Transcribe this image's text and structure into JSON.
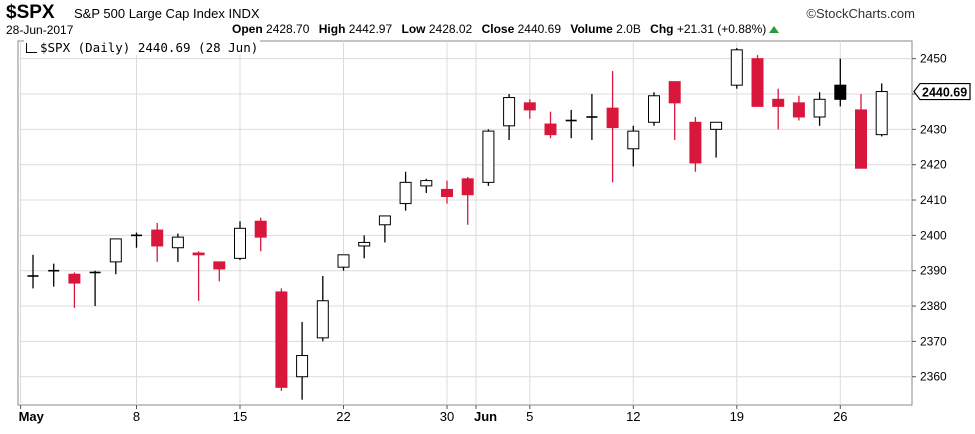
{
  "header": {
    "symbol": "$SPX",
    "name": "S&P 500 Large Cap Index",
    "exchange": "INDX",
    "brand": "StockCharts.com",
    "date": "28-Jun-2017",
    "open_label": "Open",
    "open": "2428.70",
    "high_label": "High",
    "high": "2442.97",
    "low_label": "Low",
    "low": "2428.02",
    "close_label": "Close",
    "close": "2440.69",
    "volume_label": "Volume",
    "volume": "2.0B",
    "chg_label": "Chg",
    "chg": "+21.31 (+0.88%)"
  },
  "series_label": "$SPX (Daily) 2440.69 (28 Jun)",
  "colors": {
    "up": "#ffffff",
    "down": "#d9173d",
    "outline": "#000000",
    "grid": "#dcdcdc",
    "last": "#000000"
  },
  "chart_data": {
    "type": "candlestick",
    "ylim": [
      2352,
      2455
    ],
    "y_ticks": [
      2360,
      2370,
      2380,
      2390,
      2400,
      2410,
      2420,
      2430,
      2440,
      2450
    ],
    "last_value": "2440.69",
    "x_labels": [
      {
        "label": "May",
        "bold": true,
        "index": -0.6
      },
      {
        "label": "8",
        "index": 5
      },
      {
        "label": "15",
        "index": 10
      },
      {
        "label": "22",
        "index": 15
      },
      {
        "label": "30",
        "index": 20
      },
      {
        "label": "Jun",
        "bold": true,
        "index": 21.4
      },
      {
        "label": "5",
        "index": 24
      },
      {
        "label": "12",
        "index": 29
      },
      {
        "label": "26",
        "index": 39
      },
      {
        "label": "19",
        "index": 34
      }
    ],
    "candles": [
      {
        "o": 2388.5,
        "h": 2394.5,
        "l": 2385.0,
        "c": 2388.5,
        "color": "doji"
      },
      {
        "o": 2390.0,
        "h": 2392.0,
        "l": 2385.5,
        "c": 2390.0,
        "color": "doji"
      },
      {
        "o": 2389.0,
        "h": 2389.5,
        "l": 2379.5,
        "c": 2386.5,
        "color": "red"
      },
      {
        "o": 2389.5,
        "h": 2390.0,
        "l": 2380.0,
        "c": 2389.5,
        "color": "doji"
      },
      {
        "o": 2392.5,
        "h": 2399.0,
        "l": 2389.0,
        "c": 2399.0,
        "color": "up"
      },
      {
        "o": 2400.0,
        "h": 2400.8,
        "l": 2396.5,
        "c": 2400.0,
        "color": "doji"
      },
      {
        "o": 2401.5,
        "h": 2403.5,
        "l": 2392.5,
        "c": 2397.0,
        "color": "red"
      },
      {
        "o": 2396.5,
        "h": 2400.5,
        "l": 2392.5,
        "c": 2399.5,
        "color": "up"
      },
      {
        "o": 2395.0,
        "h": 2395.5,
        "l": 2381.5,
        "c": 2394.5,
        "color": "red"
      },
      {
        "o": 2392.5,
        "h": 2392.5,
        "l": 2387.0,
        "c": 2390.5,
        "color": "red"
      },
      {
        "o": 2393.5,
        "h": 2404.0,
        "l": 2393.0,
        "c": 2402.0,
        "color": "up"
      },
      {
        "o": 2404.0,
        "h": 2405.0,
        "l": 2395.5,
        "c": 2399.5,
        "color": "red"
      },
      {
        "o": 2384.0,
        "h": 2385.0,
        "l": 2356.0,
        "c": 2357.0,
        "color": "red"
      },
      {
        "o": 2360.0,
        "h": 2375.5,
        "l": 2353.5,
        "c": 2366.0,
        "color": "up"
      },
      {
        "o": 2371.0,
        "h": 2388.5,
        "l": 2370.0,
        "c": 2381.5,
        "color": "up"
      },
      {
        "o": 2391.0,
        "h": 2394.5,
        "l": 2390.0,
        "c": 2394.5,
        "color": "up"
      },
      {
        "o": 2397.0,
        "h": 2400.0,
        "l": 2393.5,
        "c": 2398.0,
        "color": "up"
      },
      {
        "o": 2403.0,
        "h": 2405.5,
        "l": 2398.0,
        "c": 2405.5,
        "color": "up"
      },
      {
        "o": 2409.0,
        "h": 2418.0,
        "l": 2407.0,
        "c": 2415.0,
        "color": "up"
      },
      {
        "o": 2414.0,
        "h": 2416.0,
        "l": 2412.0,
        "c": 2415.5,
        "color": "up"
      },
      {
        "o": 2413.0,
        "h": 2415.5,
        "l": 2409.0,
        "c": 2411.0,
        "color": "red"
      },
      {
        "o": 2416.0,
        "h": 2416.5,
        "l": 2403.0,
        "c": 2411.5,
        "color": "red"
      },
      {
        "o": 2415.0,
        "h": 2430.0,
        "l": 2414.0,
        "c": 2429.5,
        "color": "up"
      },
      {
        "o": 2431.0,
        "h": 2440.0,
        "l": 2427.0,
        "c": 2439.0,
        "color": "up"
      },
      {
        "o": 2437.5,
        "h": 2438.5,
        "l": 2433.0,
        "c": 2435.5,
        "color": "red"
      },
      {
        "o": 2431.5,
        "h": 2435.0,
        "l": 2427.5,
        "c": 2428.5,
        "color": "red"
      },
      {
        "o": 2432.5,
        "h": 2435.5,
        "l": 2427.5,
        "c": 2432.5,
        "color": "doji"
      },
      {
        "o": 2433.5,
        "h": 2440.0,
        "l": 2427.0,
        "c": 2433.5,
        "color": "doji"
      },
      {
        "o": 2436.0,
        "h": 2446.5,
        "l": 2415.0,
        "c": 2430.5,
        "color": "red"
      },
      {
        "o": 2424.5,
        "h": 2431.0,
        "l": 2419.5,
        "c": 2429.5,
        "color": "up"
      },
      {
        "o": 2432.0,
        "h": 2440.5,
        "l": 2431.0,
        "c": 2439.5,
        "color": "up"
      },
      {
        "o": 2443.5,
        "h": 2443.5,
        "l": 2427.0,
        "c": 2437.5,
        "color": "red"
      },
      {
        "o": 2432.0,
        "h": 2433.5,
        "l": 2418.0,
        "c": 2420.5,
        "color": "red"
      },
      {
        "o": 2430.0,
        "h": 2432.0,
        "l": 2422.0,
        "c": 2432.0,
        "color": "up"
      },
      {
        "o": 2442.5,
        "h": 2453.0,
        "l": 2441.5,
        "c": 2452.5,
        "color": "up"
      },
      {
        "o": 2450.0,
        "h": 2451.0,
        "l": 2436.5,
        "c": 2436.5,
        "color": "red"
      },
      {
        "o": 2438.5,
        "h": 2441.5,
        "l": 2430.0,
        "c": 2436.5,
        "color": "red"
      },
      {
        "o": 2437.5,
        "h": 2439.5,
        "l": 2432.5,
        "c": 2433.5,
        "color": "red"
      },
      {
        "o": 2433.5,
        "h": 2440.5,
        "l": 2431.0,
        "c": 2438.5,
        "color": "up"
      },
      {
        "o": 2438.5,
        "h": 2450.0,
        "l": 2436.5,
        "c": 2442.5,
        "color": "black"
      },
      {
        "o": 2435.5,
        "h": 2440.0,
        "l": 2419.0,
        "c": 2419.0,
        "color": "red"
      },
      {
        "o": 2428.5,
        "h": 2443.0,
        "l": 2428.0,
        "c": 2440.7,
        "color": "up"
      }
    ]
  }
}
